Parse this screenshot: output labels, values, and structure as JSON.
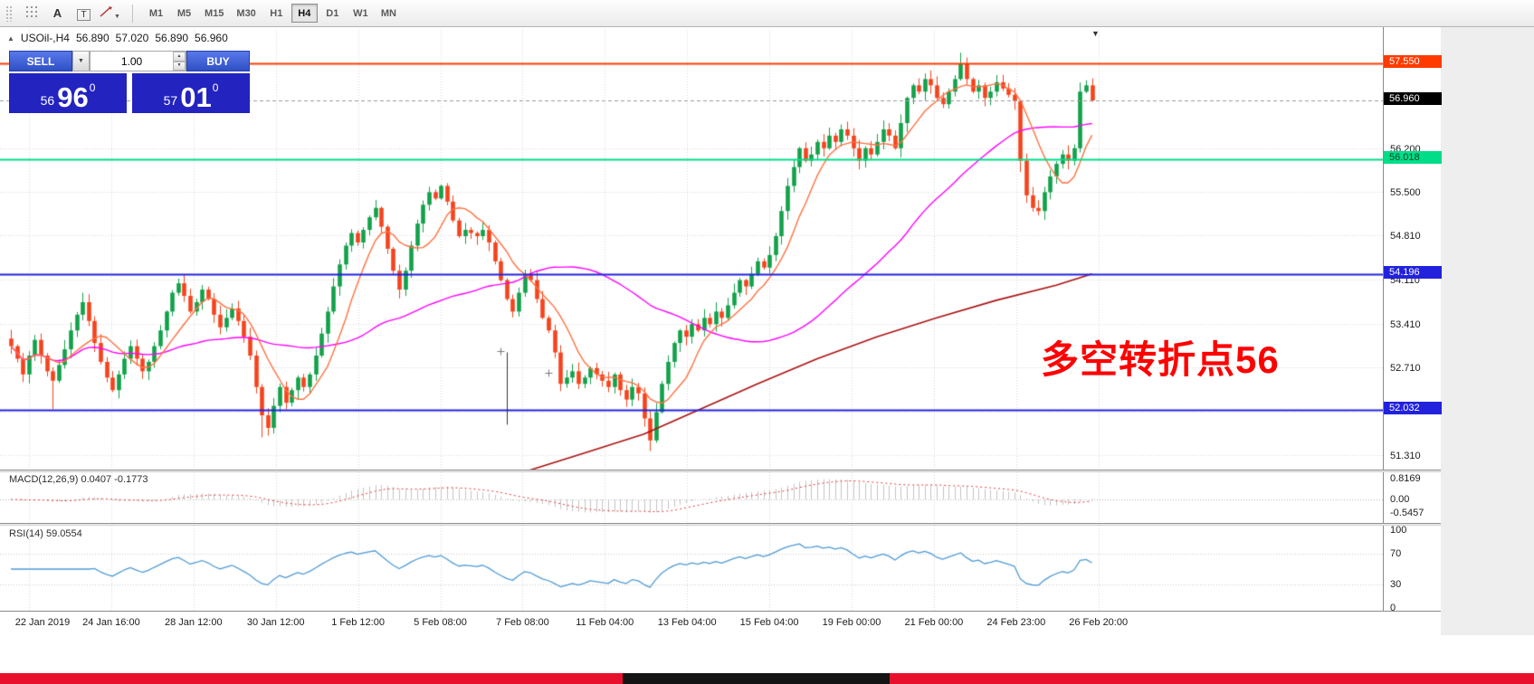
{
  "icons": {
    "header_caret": "▲",
    "shift_marker": "▼",
    "dropdown_caret": "▼",
    "spin_up": "▲",
    "spin_down": "▼"
  },
  "toolbar": {
    "tools": [
      {
        "name": "crosshair-tool"
      },
      {
        "name": "text-tool",
        "glyph": "A"
      },
      {
        "name": "text-label-tool",
        "glyph": "T"
      },
      {
        "name": "line-studies-tool"
      }
    ],
    "timeframes": [
      {
        "label": "M1"
      },
      {
        "label": "M5"
      },
      {
        "label": "M15"
      },
      {
        "label": "M30"
      },
      {
        "label": "H1"
      },
      {
        "label": "H4",
        "active": true
      },
      {
        "label": "D1"
      },
      {
        "label": "W1"
      },
      {
        "label": "MN"
      }
    ]
  },
  "chart": {
    "symbol_period": "USOil-,H4",
    "ohlc": {
      "open": "56.890",
      "high": "57.020",
      "low": "56.890",
      "close": "56.960"
    },
    "annotation": {
      "text": "多空转折点56",
      "color": "#ff0000"
    }
  },
  "trade_panel": {
    "sell_label": "SELL",
    "buy_label": "BUY",
    "volume": "1.00",
    "bid": {
      "prefix": "56",
      "big": "96",
      "sup": "0"
    },
    "ask": {
      "prefix": "57",
      "big": "01",
      "sup": "0"
    }
  },
  "indicators": {
    "macd": {
      "label": "MACD(12,26,9) 0.0407 -0.1773"
    },
    "rsi": {
      "label": "RSI(14) 59.0554"
    }
  },
  "chart_data": {
    "type": "candlestick",
    "symbol": "USOil-",
    "timeframe": "H4",
    "y_range": [
      51.1,
      58.15
    ],
    "closes": [
      53.05,
      52.85,
      52.6,
      52.9,
      53.15,
      52.9,
      52.65,
      52.5,
      52.75,
      53.0,
      53.3,
      53.55,
      53.75,
      53.45,
      53.1,
      52.8,
      52.55,
      52.35,
      52.6,
      52.85,
      53.05,
      52.85,
      52.65,
      52.8,
      53.05,
      53.3,
      53.6,
      53.9,
      54.05,
      53.85,
      53.6,
      53.75,
      53.95,
      53.8,
      53.55,
      53.35,
      53.5,
      53.65,
      53.45,
      53.2,
      52.9,
      52.4,
      51.95,
      51.75,
      52.1,
      52.4,
      52.15,
      52.35,
      52.55,
      52.4,
      52.6,
      52.9,
      53.25,
      53.6,
      54.0,
      54.35,
      54.65,
      54.85,
      54.7,
      54.9,
      55.1,
      55.25,
      54.95,
      54.6,
      54.25,
      53.95,
      54.25,
      54.65,
      55.0,
      55.3,
      55.5,
      55.4,
      55.6,
      55.35,
      55.05,
      54.8,
      54.9,
      54.85,
      54.8,
      54.9,
      54.7,
      54.4,
      54.1,
      53.8,
      53.6,
      53.9,
      54.2,
      54.1,
      53.8,
      53.5,
      53.3,
      52.95,
      52.45,
      52.55,
      52.65,
      52.45,
      52.55,
      52.7,
      52.6,
      52.5,
      52.4,
      52.6,
      52.35,
      52.2,
      52.4,
      52.3,
      51.9,
      51.55,
      52.0,
      52.45,
      52.8,
      53.1,
      53.3,
      53.2,
      53.4,
      53.3,
      53.5,
      53.4,
      53.6,
      53.5,
      53.7,
      53.9,
      54.1,
      54.0,
      54.2,
      54.4,
      54.3,
      54.5,
      54.8,
      55.2,
      55.6,
      55.9,
      56.2,
      56.0,
      56.1,
      56.3,
      56.2,
      56.4,
      56.3,
      56.5,
      56.4,
      56.2,
      56.0,
      56.2,
      56.1,
      56.3,
      56.5,
      56.4,
      56.2,
      56.6,
      57.0,
      57.2,
      57.1,
      57.3,
      57.2,
      57.0,
      56.9,
      57.1,
      57.3,
      57.55,
      57.3,
      57.1,
      57.2,
      57.0,
      57.1,
      57.25,
      57.15,
      57.05,
      56.95,
      56.0,
      55.45,
      55.25,
      55.2,
      55.5,
      55.75,
      55.95,
      56.1,
      56.0,
      56.2,
      57.1,
      57.2,
      56.96
    ],
    "wick_overrides": {
      "7": {
        "low": 52.05
      },
      "42": {
        "low": 51.6
      },
      "107": {
        "low": 51.38
      },
      "159": {
        "high": 57.72
      },
      "169": {
        "low": 55.82
      }
    },
    "y_ticks": [
      {
        "price": 56.2,
        "label": "56.200"
      },
      {
        "price": 55.5,
        "label": "55.500"
      },
      {
        "price": 54.81,
        "label": "54.810"
      },
      {
        "price": 54.11,
        "label": "54.110"
      },
      {
        "price": 53.41,
        "label": "53.410"
      },
      {
        "price": 52.71,
        "label": "52.710"
      },
      {
        "price": 51.31,
        "label": "51.310"
      }
    ],
    "grid_extra_prices": [
      52.01
    ],
    "hlines": [
      {
        "price": 57.55,
        "label": "57.550",
        "color": "#ff3b00",
        "style": "solid",
        "width": 2,
        "tag_bg": "#ff3b00",
        "tag_fg": "#ffffff"
      },
      {
        "price": 56.96,
        "label": "56.960",
        "color": "#9a9a9a",
        "style": "dash",
        "width": 1,
        "tag_bg": "#000000",
        "tag_fg": "#ffffff"
      },
      {
        "price": 56.018,
        "label": "56.018",
        "color": "#00dd88",
        "style": "solid",
        "width": 2,
        "tag_bg": "#00dd88",
        "tag_fg": "#00482a"
      },
      {
        "price": 54.196,
        "label": "54.196",
        "color": "#2222dd",
        "style": "solid",
        "width": 2,
        "tag_bg": "#2222dd",
        "tag_fg": "#ffffff"
      },
      {
        "price": 52.032,
        "label": "52.032",
        "color": "#2222dd",
        "style": "solid",
        "width": 2,
        "tag_bg": "#2222dd",
        "tag_fg": "#ffffff"
      }
    ],
    "x_labels": [
      "22 Jan 2019",
      "24 Jan 16:00",
      "28 Jan 12:00",
      "30 Jan 12:00",
      "1 Feb 12:00",
      "5 Feb 08:00",
      "7 Feb 08:00",
      "11 Feb 04:00",
      "13 Feb 04:00",
      "15 Feb 04:00",
      "19 Feb 00:00",
      "21 Feb 00:00",
      "24 Feb 23:00",
      "26 Feb 20:00"
    ],
    "colors": {
      "up": "#12a14a",
      "down": "#f6431d",
      "ma_fast": "#ff7040",
      "ma_mid": "#ff00ff",
      "ma_slow": "#aa1111",
      "macd_hist": "#c3c3c3",
      "macd_signal": "#e23a3a",
      "rsi": "#4f9bd5"
    },
    "slow_ma_points": [
      [
        86,
        51.05
      ],
      [
        96,
        51.35
      ],
      [
        106,
        51.65
      ],
      [
        115,
        52.03
      ],
      [
        125,
        52.45
      ],
      [
        135,
        52.85
      ],
      [
        145,
        53.2
      ],
      [
        155,
        53.5
      ],
      [
        165,
        53.78
      ],
      [
        175,
        54.02
      ],
      [
        181,
        54.2
      ]
    ],
    "macd_axis": [
      {
        "value": 0.8169,
        "label": "0.8169"
      },
      {
        "value": 0.0,
        "label": "0.00"
      },
      {
        "value": -0.5457,
        "label": "-0.5457"
      }
    ],
    "rsi_axis": [
      {
        "value": 100,
        "label": "100"
      },
      {
        "value": 70,
        "label": "70"
      },
      {
        "value": 30,
        "label": "30"
      },
      {
        "value": 0,
        "label": "0"
      }
    ],
    "rsi_levels": [
      70,
      30
    ],
    "objects": [
      {
        "type": "vline-segment",
        "bar": 83,
        "p1": 52.95,
        "p2": 51.8
      },
      {
        "type": "cross",
        "bar": 82,
        "price": 52.97
      },
      {
        "type": "cross",
        "bar": 90,
        "price": 52.63
      }
    ]
  },
  "taskbar": {
    "color": "#e8112d",
    "segment_color": "#141414"
  }
}
